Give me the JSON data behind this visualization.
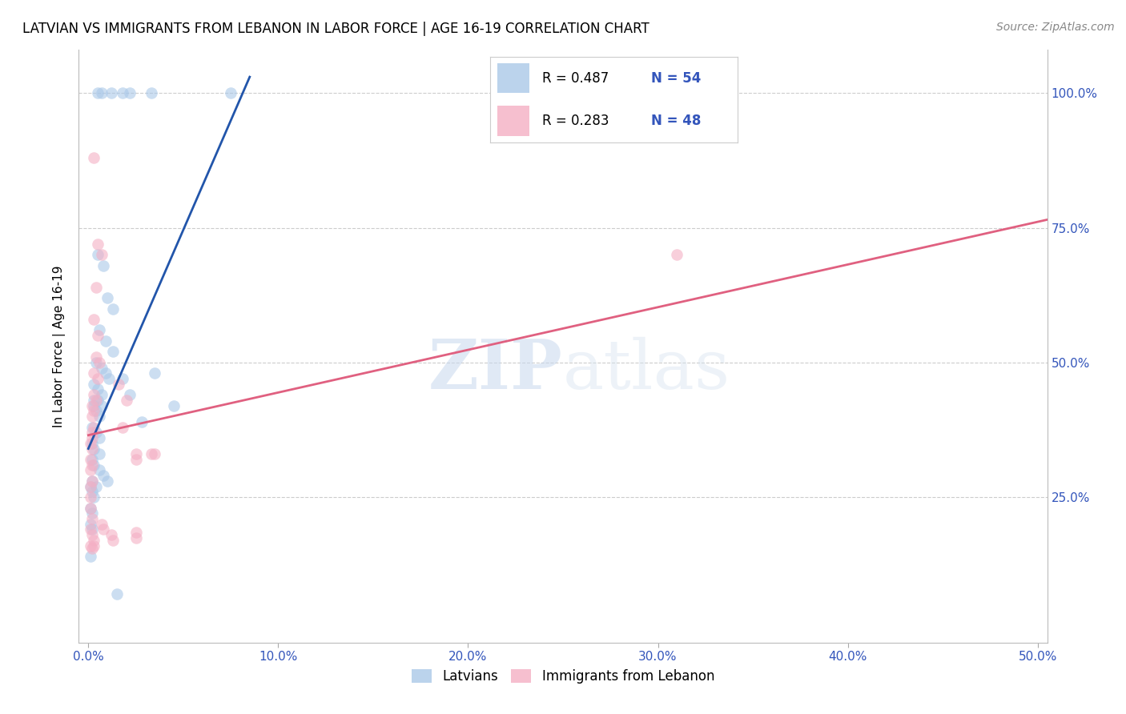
{
  "title": "LATVIAN VS IMMIGRANTS FROM LEBANON IN LABOR FORCE | AGE 16-19 CORRELATION CHART",
  "source": "Source: ZipAtlas.com",
  "ylabel": "In Labor Force | Age 16-19",
  "xlim": [
    -0.005,
    0.505
  ],
  "ylim": [
    -0.02,
    1.08
  ],
  "xticks": [
    0.0,
    0.1,
    0.2,
    0.3,
    0.4,
    0.5
  ],
  "xticklabels": [
    "0.0%",
    "10.0%",
    "20.0%",
    "30.0%",
    "40.0%",
    "50.0%"
  ],
  "yticks": [
    0.0,
    0.25,
    0.5,
    0.75,
    1.0
  ],
  "yticklabels": [
    "",
    "25.0%",
    "50.0%",
    "75.0%",
    "100.0%"
  ],
  "blue_color": "#aac8e8",
  "pink_color": "#f4afc4",
  "trendline_blue_color": "#2255aa",
  "trendline_pink_color": "#e06080",
  "watermark_zip": "ZIP",
  "watermark_atlas": "atlas",
  "blue_scatter": [
    [
      0.005,
      1.0
    ],
    [
      0.007,
      1.0
    ],
    [
      0.012,
      1.0
    ],
    [
      0.018,
      1.0
    ],
    [
      0.022,
      1.0
    ],
    [
      0.033,
      1.0
    ],
    [
      0.075,
      1.0
    ],
    [
      0.005,
      0.7
    ],
    [
      0.008,
      0.68
    ],
    [
      0.01,
      0.62
    ],
    [
      0.013,
      0.6
    ],
    [
      0.006,
      0.56
    ],
    [
      0.009,
      0.54
    ],
    [
      0.013,
      0.52
    ],
    [
      0.004,
      0.5
    ],
    [
      0.007,
      0.49
    ],
    [
      0.009,
      0.48
    ],
    [
      0.011,
      0.47
    ],
    [
      0.003,
      0.46
    ],
    [
      0.005,
      0.45
    ],
    [
      0.007,
      0.44
    ],
    [
      0.003,
      0.43
    ],
    [
      0.005,
      0.43
    ],
    [
      0.007,
      0.42
    ],
    [
      0.003,
      0.42
    ],
    [
      0.004,
      0.41
    ],
    [
      0.006,
      0.4
    ],
    [
      0.002,
      0.38
    ],
    [
      0.004,
      0.37
    ],
    [
      0.006,
      0.36
    ],
    [
      0.002,
      0.35
    ],
    [
      0.003,
      0.34
    ],
    [
      0.002,
      0.32
    ],
    [
      0.003,
      0.31
    ],
    [
      0.002,
      0.28
    ],
    [
      0.004,
      0.27
    ],
    [
      0.001,
      0.27
    ],
    [
      0.002,
      0.26
    ],
    [
      0.003,
      0.25
    ],
    [
      0.001,
      0.23
    ],
    [
      0.002,
      0.22
    ],
    [
      0.001,
      0.2
    ],
    [
      0.002,
      0.19
    ],
    [
      0.018,
      0.47
    ],
    [
      0.022,
      0.44
    ],
    [
      0.035,
      0.48
    ],
    [
      0.045,
      0.42
    ],
    [
      0.028,
      0.39
    ],
    [
      0.001,
      0.14
    ],
    [
      0.015,
      0.07
    ],
    [
      0.006,
      0.3
    ],
    [
      0.008,
      0.29
    ],
    [
      0.01,
      0.28
    ],
    [
      0.006,
      0.33
    ]
  ],
  "pink_scatter": [
    [
      0.003,
      0.88
    ],
    [
      0.005,
      0.72
    ],
    [
      0.007,
      0.7
    ],
    [
      0.004,
      0.64
    ],
    [
      0.003,
      0.58
    ],
    [
      0.005,
      0.55
    ],
    [
      0.004,
      0.51
    ],
    [
      0.006,
      0.5
    ],
    [
      0.003,
      0.48
    ],
    [
      0.005,
      0.47
    ],
    [
      0.003,
      0.44
    ],
    [
      0.004,
      0.43
    ],
    [
      0.002,
      0.42
    ],
    [
      0.003,
      0.41
    ],
    [
      0.002,
      0.4
    ],
    [
      0.003,
      0.38
    ],
    [
      0.002,
      0.37
    ],
    [
      0.002,
      0.36
    ],
    [
      0.001,
      0.35
    ],
    [
      0.002,
      0.34
    ],
    [
      0.001,
      0.32
    ],
    [
      0.002,
      0.31
    ],
    [
      0.001,
      0.3
    ],
    [
      0.002,
      0.28
    ],
    [
      0.001,
      0.27
    ],
    [
      0.001,
      0.25
    ],
    [
      0.001,
      0.23
    ],
    [
      0.002,
      0.21
    ],
    [
      0.001,
      0.19
    ],
    [
      0.002,
      0.18
    ],
    [
      0.016,
      0.46
    ],
    [
      0.02,
      0.43
    ],
    [
      0.018,
      0.38
    ],
    [
      0.025,
      0.33
    ],
    [
      0.025,
      0.32
    ],
    [
      0.033,
      0.33
    ],
    [
      0.035,
      0.33
    ],
    [
      0.31,
      0.7
    ],
    [
      0.001,
      0.16
    ],
    [
      0.002,
      0.155
    ],
    [
      0.003,
      0.17
    ],
    [
      0.003,
      0.16
    ],
    [
      0.012,
      0.18
    ],
    [
      0.013,
      0.17
    ],
    [
      0.007,
      0.2
    ],
    [
      0.008,
      0.19
    ],
    [
      0.025,
      0.175
    ],
    [
      0.025,
      0.185
    ]
  ],
  "blue_trendline_x": [
    0.0,
    0.085
  ],
  "blue_trendline_y": [
    0.34,
    1.03
  ],
  "pink_trendline_x": [
    0.0,
    0.505
  ],
  "pink_trendline_y": [
    0.365,
    0.765
  ],
  "legend_label_blue": "Latvians",
  "legend_label_pink": "Immigrants from Lebanon"
}
